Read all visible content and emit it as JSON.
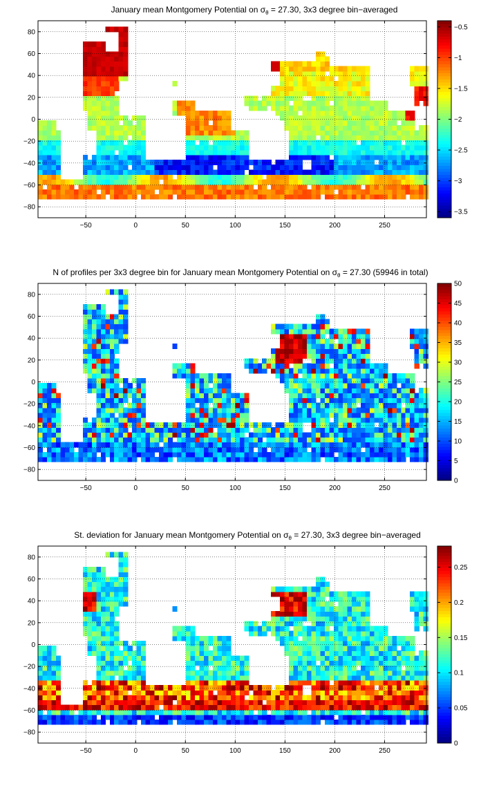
{
  "chart_data": [
    {
      "type": "heatmap",
      "title": "January mean Montgomery Potential on σ",
      "title_sub": "θ",
      "title_rest": " = 27.30, 3x3 degree bin−averaged",
      "x_ticks": [
        "−50",
        "0",
        "50",
        "100",
        "150",
        "200",
        "250"
      ],
      "x_tick_values": [
        -50,
        0,
        50,
        100,
        150,
        200,
        250
      ],
      "y_ticks": [
        "80",
        "60",
        "40",
        "20",
        "0",
        "−20",
        "−40",
        "−60",
        "−80"
      ],
      "y_tick_values": [
        80,
        60,
        40,
        20,
        0,
        -20,
        -40,
        -60,
        -80
      ],
      "xlim": [
        -98,
        292
      ],
      "ylim": [
        -90,
        90
      ],
      "grid": true,
      "colorbar": {
        "range": [
          -3.6,
          -0.4
        ],
        "ticks": [
          "−0.5",
          "−1",
          "−1.5",
          "−2",
          "−2.5",
          "−3",
          "−3.5"
        ],
        "tick_values": [
          -0.5,
          -1,
          -1.5,
          -2,
          -2.5,
          -3,
          -3.5
        ],
        "colormap": "jet"
      }
    },
    {
      "type": "heatmap",
      "title": "N of profiles per 3x3 degree bin for January mean Montgomery Potential on σ",
      "title_sub": "θ",
      "title_rest": " = 27.30 (59946 in total)",
      "x_ticks": [
        "−50",
        "0",
        "50",
        "100",
        "150",
        "200",
        "250"
      ],
      "x_tick_values": [
        -50,
        0,
        50,
        100,
        150,
        200,
        250
      ],
      "y_ticks": [
        "80",
        "60",
        "40",
        "20",
        "0",
        "−20",
        "−40",
        "−60",
        "−80"
      ],
      "y_tick_values": [
        80,
        60,
        40,
        20,
        0,
        -20,
        -40,
        -60,
        -80
      ],
      "xlim": [
        -98,
        292
      ],
      "ylim": [
        -90,
        90
      ],
      "grid": true,
      "colorbar": {
        "range": [
          0,
          50
        ],
        "ticks": [
          "50",
          "45",
          "40",
          "35",
          "30",
          "25",
          "20",
          "15",
          "10",
          "5",
          "0"
        ],
        "tick_values": [
          50,
          45,
          40,
          35,
          30,
          25,
          20,
          15,
          10,
          5,
          0
        ],
        "colormap": "jet"
      }
    },
    {
      "type": "heatmap",
      "title": "St. deviation for January mean Montgomery Potential on σ",
      "title_sub": "θ",
      "title_rest": " = 27.30, 3x3 degree bin−averaged",
      "x_ticks": [
        "−50",
        "0",
        "50",
        "100",
        "150",
        "200",
        "250"
      ],
      "x_tick_values": [
        -50,
        0,
        50,
        100,
        150,
        200,
        250
      ],
      "y_ticks": [
        "80",
        "60",
        "40",
        "20",
        "0",
        "−20",
        "−40",
        "−60",
        "−80"
      ],
      "y_tick_values": [
        80,
        60,
        40,
        20,
        0,
        -20,
        -40,
        -60,
        -80
      ],
      "xlim": [
        -98,
        292
      ],
      "ylim": [
        -90,
        90
      ],
      "grid": true,
      "colorbar": {
        "range": [
          0,
          0.28
        ],
        "ticks": [
          "0.25",
          "0.2",
          "0.15",
          "0.1",
          "0.05",
          "0"
        ],
        "tick_values": [
          0.25,
          0.2,
          0.15,
          0.1,
          0.05,
          0
        ],
        "colormap": "jet"
      }
    }
  ]
}
